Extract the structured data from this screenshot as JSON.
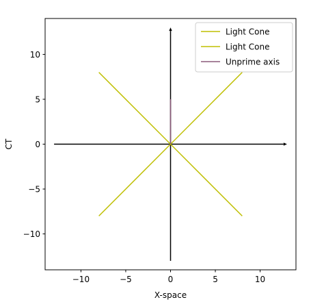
{
  "chart_data": {
    "type": "line",
    "title": "",
    "xlabel": "X-space",
    "ylabel": "CT",
    "xlim": [
      -14,
      14
    ],
    "ylim": [
      -14,
      14
    ],
    "xticks": [
      -10,
      -5,
      0,
      5,
      10
    ],
    "yticks": [
      -10,
      -5,
      0,
      5,
      10
    ],
    "grid": false,
    "legend_position": "top-right",
    "series": [
      {
        "name": "Light Cone",
        "color": "#bfbf00",
        "x": [
          -8,
          8
        ],
        "y": [
          -8,
          8
        ]
      },
      {
        "name": "Light Cone",
        "color": "#bfbf00",
        "x": [
          -8,
          8
        ],
        "y": [
          8,
          -8
        ]
      },
      {
        "name": "Unprime axis",
        "color": "#8c5a7a",
        "x": [
          0,
          0
        ],
        "y": [
          0,
          5
        ]
      }
    ],
    "arrows": [
      {
        "name": "x-axis-arrow",
        "color": "#000000",
        "from": [
          -13,
          0
        ],
        "to": [
          13,
          0
        ]
      },
      {
        "name": "ct-axis-arrow",
        "color": "#000000",
        "from": [
          0,
          -13
        ],
        "to": [
          0,
          13
        ]
      }
    ]
  }
}
